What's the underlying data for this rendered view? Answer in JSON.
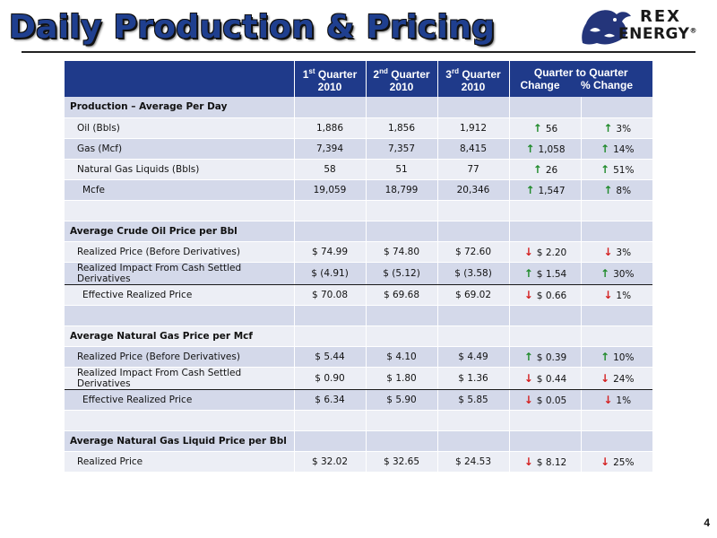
{
  "header": {
    "title": "Daily Production & Pricing",
    "logo_line1": "REX",
    "logo_line2": "ENERGY",
    "logo_mark": "®"
  },
  "colors": {
    "title_blue": "#1f3f8f",
    "header_bg": "#1f3a8a",
    "row_dark": "#d4d9ea",
    "row_light": "#eceef5",
    "up": "#1f8a2a",
    "down": "#d42020"
  },
  "table": {
    "columns": [
      {
        "num": "1",
        "sup": "st",
        "word": "Quarter",
        "year": "2010"
      },
      {
        "num": "2",
        "sup": "nd",
        "word": "Quarter",
        "year": "2010"
      },
      {
        "num": "3",
        "sup": "rd",
        "word": "Quarter",
        "year": "2010"
      }
    ],
    "change_header": "Quarter to Quarter",
    "change_sub": "Change",
    "pct_sub": "% Change",
    "rows": [
      {
        "label": "Production – Average Per Day",
        "level": 0
      },
      {
        "label": "Oil (Bbls)",
        "level": 1,
        "values": [
          "1,886",
          "1,856",
          "1,912"
        ],
        "change": "56",
        "change_dir": "up",
        "pct": "3%",
        "pct_dir": "up"
      },
      {
        "label": "Gas (Mcf)",
        "level": 1,
        "values": [
          "7,394",
          "7,357",
          "8,415"
        ],
        "change": "1,058",
        "change_dir": "up",
        "pct": "14%",
        "pct_dir": "up"
      },
      {
        "label": "Natural Gas Liquids (Bbls)",
        "level": 1,
        "values": [
          "58",
          "51",
          "77"
        ],
        "change": "26",
        "change_dir": "up",
        "pct": "51%",
        "pct_dir": "up"
      },
      {
        "label": "Mcfe",
        "level": 2,
        "values": [
          "19,059",
          "18,799",
          "20,346"
        ],
        "change": "1,547",
        "change_dir": "up",
        "pct": "8%",
        "pct_dir": "up"
      },
      {
        "label": "",
        "level": 1
      },
      {
        "label": "Average Crude Oil Price per Bbl",
        "level": 0
      },
      {
        "label": "Realized Price (Before Derivatives)",
        "level": 1,
        "values": [
          "$ 74.99",
          "$ 74.80",
          "$ 72.60"
        ],
        "change": "$ 2.20",
        "change_dir": "down",
        "pct": "3%",
        "pct_dir": "down"
      },
      {
        "label": "Realized Impact From Cash Settled Derivatives",
        "level": 1,
        "values": [
          "$ (4.91)",
          "$ (5.12)",
          "$ (3.58)"
        ],
        "change": "$ 1.54",
        "change_dir": "up",
        "pct": "30%",
        "pct_dir": "up",
        "rule": true
      },
      {
        "label": "Effective Realized Price",
        "level": 2,
        "values": [
          "$ 70.08",
          "$ 69.68",
          "$ 69.02"
        ],
        "change": "$ 0.66",
        "change_dir": "down",
        "pct": "1%",
        "pct_dir": "down"
      },
      {
        "label": "",
        "level": 1
      },
      {
        "label": "Average Natural Gas Price per Mcf",
        "level": 0
      },
      {
        "label": "Realized Price (Before Derivatives)",
        "level": 1,
        "values": [
          "$ 5.44",
          "$ 4.10",
          "$ 4.49"
        ],
        "change": "$ 0.39",
        "change_dir": "up",
        "pct": "10%",
        "pct_dir": "up"
      },
      {
        "label": "Realized Impact From Cash Settled Derivatives",
        "level": 1,
        "values": [
          "$ 0.90",
          "$ 1.80",
          "$ 1.36"
        ],
        "change": "$ 0.44",
        "change_dir": "down",
        "pct": "24%",
        "pct_dir": "down",
        "rule": true
      },
      {
        "label": "Effective Realized Price",
        "level": 2,
        "values": [
          "$ 6.34",
          "$ 5.90",
          "$ 5.85"
        ],
        "change": "$ 0.05",
        "change_dir": "down",
        "pct": "1%",
        "pct_dir": "down"
      },
      {
        "label": "",
        "level": 1
      },
      {
        "label": "Average Natural Gas Liquid Price per Bbl",
        "level": 0
      },
      {
        "label": "Realized Price",
        "level": 1,
        "values": [
          "$ 32.02",
          "$ 32.65",
          "$ 24.53"
        ],
        "change": "$ 8.12",
        "change_dir": "down",
        "pct": "25%",
        "pct_dir": "down"
      }
    ]
  },
  "page_number": "4"
}
